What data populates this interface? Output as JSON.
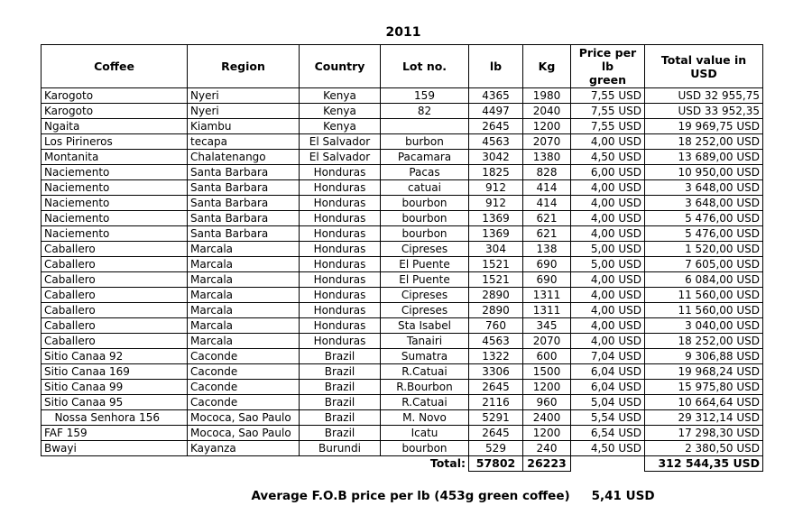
{
  "title": "2011",
  "table": {
    "columns": [
      "Coffee",
      "Region",
      "Country",
      "Lot no.",
      "lb",
      "Kg",
      "Price per lb\ngreen",
      "Total value in\nUSD"
    ],
    "rows": [
      [
        "Karogoto",
        "Nyeri",
        "Kenya",
        "159",
        "4365",
        "1980",
        "7,55 USD",
        "USD 32 955,75"
      ],
      [
        "Karogoto",
        "Nyeri",
        "Kenya",
        "82",
        "4497",
        "2040",
        "7,55 USD",
        "USD 33 952,35"
      ],
      [
        "Ngaita",
        "Kiambu",
        "Kenya",
        "",
        "2645",
        "1200",
        "7,55 USD",
        "19 969,75 USD"
      ],
      [
        "Los Pirineros",
        "tecapa",
        "El Salvador",
        "burbon",
        "4563",
        "2070",
        "4,00 USD",
        "18 252,00 USD"
      ],
      [
        "Montanita",
        "Chalatenango",
        "El Salvador",
        "Pacamara",
        "3042",
        "1380",
        "4,50 USD",
        "13 689,00 USD"
      ],
      [
        "Naciemento",
        "Santa Barbara",
        "Honduras",
        "Pacas",
        "1825",
        "828",
        "6,00 USD",
        "10 950,00 USD"
      ],
      [
        "Naciemento",
        "Santa Barbara",
        "Honduras",
        "catuai",
        "912",
        "414",
        "4,00 USD",
        "3 648,00 USD"
      ],
      [
        "Naciemento",
        "Santa Barbara",
        "Honduras",
        "bourbon",
        "912",
        "414",
        "4,00 USD",
        "3 648,00 USD"
      ],
      [
        "Naciemento",
        "Santa Barbara",
        "Honduras",
        "bourbon",
        "1369",
        "621",
        "4,00 USD",
        "5 476,00 USD"
      ],
      [
        "Naciemento",
        "Santa Barbara",
        "Honduras",
        "bourbon",
        "1369",
        "621",
        "4,00 USD",
        "5 476,00 USD"
      ],
      [
        "Caballero",
        "Marcala",
        "Honduras",
        "Cipreses",
        "304",
        "138",
        "5,00 USD",
        "1 520,00 USD"
      ],
      [
        "Caballero",
        "Marcala",
        "Honduras",
        "El Puente",
        "1521",
        "690",
        "5,00 USD",
        "7 605,00 USD"
      ],
      [
        "Caballero",
        "Marcala",
        "Honduras",
        "El Puente",
        "1521",
        "690",
        "4,00 USD",
        "6 084,00 USD"
      ],
      [
        "Caballero",
        "Marcala",
        "Honduras",
        "Cipreses",
        "2890",
        "1311",
        "4,00 USD",
        "11 560,00 USD"
      ],
      [
        "Caballero",
        "Marcala",
        "Honduras",
        "Cipreses",
        "2890",
        "1311",
        "4,00 USD",
        "11 560,00 USD"
      ],
      [
        "Caballero",
        "Marcala",
        "Honduras",
        "Sta Isabel",
        "760",
        "345",
        "4,00 USD",
        "3 040,00 USD"
      ],
      [
        "Caballero",
        "Marcala",
        "Honduras",
        "Tanairi",
        "4563",
        "2070",
        "4,00 USD",
        "18 252,00 USD"
      ],
      [
        "Sitio Canaa 92",
        "Caconde",
        "Brazil",
        "Sumatra",
        "1322",
        "600",
        "7,04 USD",
        "9 306,88 USD"
      ],
      [
        "Sitio Canaa 169",
        "Caconde",
        "Brazil",
        "R.Catuai",
        "3306",
        "1500",
        "6,04 USD",
        "19 968,24 USD"
      ],
      [
        "Sitio Canaa 99",
        "Caconde",
        "Brazil",
        "R.Bourbon",
        "2645",
        "1200",
        "6,04 USD",
        "15 975,80 USD"
      ],
      [
        "Sitio Canaa 95",
        "Caconde",
        "Brazil",
        "R.Catuai",
        "2116",
        "960",
        "5,04 USD",
        "10 664,64 USD"
      ],
      [
        "   Nossa Senhora 156",
        "Mococa, Sao Paulo",
        "Brazil",
        "M. Novo",
        "5291",
        "2400",
        "5,54 USD",
        "29 312,14 USD"
      ],
      [
        "FAF 159",
        "Mococa, Sao Paulo",
        "Brazil",
        "Icatu",
        "2645",
        "1200",
        "6,54 USD",
        "17 298,30 USD"
      ],
      [
        "Bwayi",
        "Kayanza",
        "Burundi",
        "bourbon",
        "529",
        "240",
        "4,50 USD",
        "2 380,50 USD"
      ]
    ],
    "total": {
      "label": "Total:",
      "lb": "57802",
      "kg": "26223",
      "value": "312 544,35 USD"
    }
  },
  "footer": {
    "label": "Average F.O.B price per lb (453g green coffee)",
    "value": "5,41 USD"
  }
}
